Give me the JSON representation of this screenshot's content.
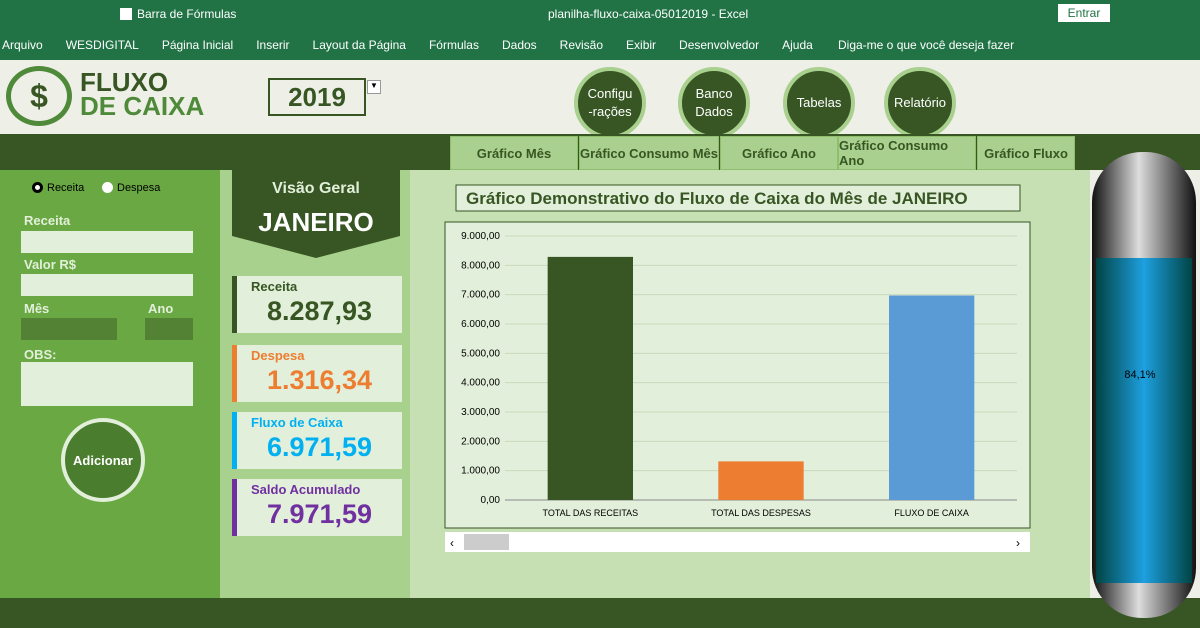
{
  "window": {
    "title": "planilha-fluxo-caixa-05012019  -  Excel",
    "formula_bar": "Barra de Fórmulas",
    "sign_in": "Entrar"
  },
  "ribbon": {
    "tabs": [
      "Arquivo",
      "WESDIGITAL",
      "Página Inicial",
      "Inserir",
      "Layout da Página",
      "Fórmulas",
      "Dados",
      "Revisão",
      "Exibir",
      "Desenvolvedor",
      "Ajuda"
    ],
    "tell_me": "Diga-me o que você deseja fazer"
  },
  "logo": {
    "symbol": "$",
    "line1": "FLUXO",
    "line2": "DE CAIXA"
  },
  "year": "2019",
  "nav_buttons": [
    [
      "Configu",
      "-rações"
    ],
    [
      "Banco",
      "Dados"
    ],
    [
      "Tabelas"
    ],
    [
      "Relatório"
    ]
  ],
  "chart_tabs": [
    "Gráfico Mês",
    "Gráfico Consumo Mês",
    "Gráfico Ano",
    "Gráfico Consumo Ano",
    "Gráfico Fluxo"
  ],
  "form": {
    "radios": [
      "Receita",
      "Despesa"
    ],
    "labels": {
      "receita": "Receita",
      "valor": "Valor R$",
      "mes": "Mês",
      "ano": "Ano",
      "obs": "OBS:"
    },
    "button": "Adicionar"
  },
  "overview": {
    "title": "Visão Geral",
    "month": "JANEIRO",
    "cards": [
      {
        "label": "Receita",
        "value": "8.287,93",
        "color": "#375623"
      },
      {
        "label": "Despesa",
        "value": "1.316,34",
        "color": "#ed7d31"
      },
      {
        "label": "Fluxo de Caixa",
        "value": "6.971,59",
        "color": "#00b0f0"
      },
      {
        "label": "Saldo Acumulado",
        "value": "7.971,59",
        "color": "#7030a0"
      }
    ]
  },
  "gauge": {
    "label": "84,1%"
  },
  "chart_data": {
    "type": "bar",
    "title": "Gráfico Demonstrativo do Fluxo de Caixa do Mês de JANEIRO",
    "categories": [
      "TOTAL DAS RECEITAS",
      "TOTAL DAS DESPESAS",
      "FLUXO DE CAIXA"
    ],
    "values": [
      8287.93,
      1316.34,
      6971.59
    ],
    "colors": [
      "#375623",
      "#ed7d31",
      "#5b9bd5"
    ],
    "ylim": [
      0,
      9000
    ],
    "yticks": [
      {
        "value": 0,
        "label": "0,00"
      },
      {
        "value": 1000,
        "label": "1.000,00"
      },
      {
        "value": 2000,
        "label": "2.000,00"
      },
      {
        "value": 3000,
        "label": "3.000,00"
      },
      {
        "value": 4000,
        "label": "4.000,00"
      },
      {
        "value": 5000,
        "label": "5.000,00"
      },
      {
        "value": 6000,
        "label": "6.000,00"
      },
      {
        "value": 7000,
        "label": "7.000,00"
      },
      {
        "value": 8000,
        "label": "8.000,00"
      },
      {
        "value": 9000,
        "label": "9.000,00"
      }
    ],
    "grid": true
  }
}
